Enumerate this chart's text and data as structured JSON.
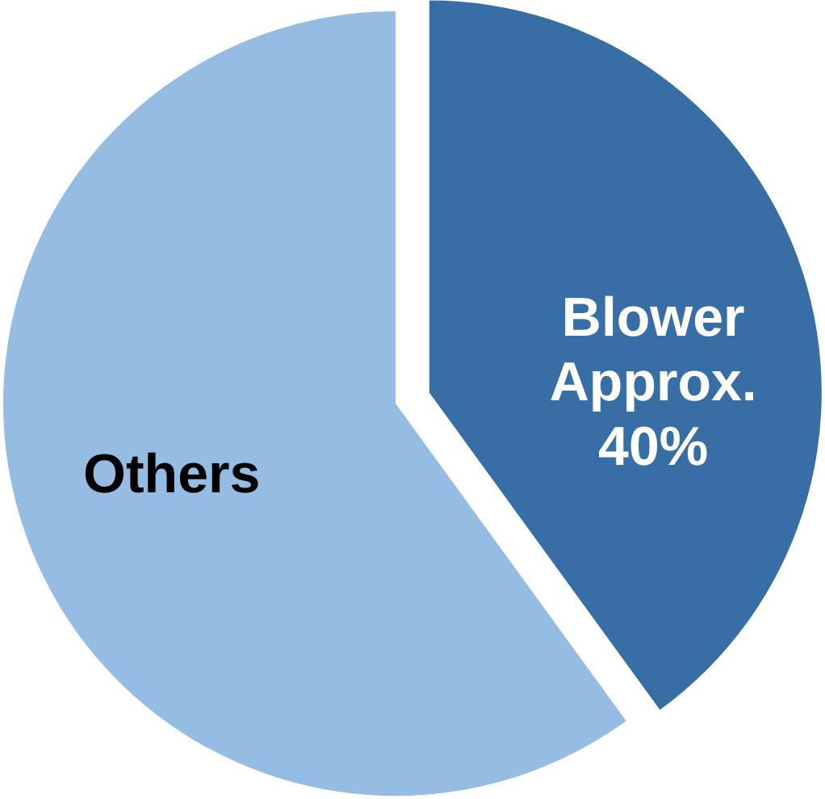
{
  "chart_data": {
    "type": "pie",
    "categories": [
      "Blower",
      "Others"
    ],
    "values": [
      40,
      60
    ],
    "value_labels": [
      "Approx. 40%",
      null
    ],
    "colors": [
      "#376ea5",
      "#95bce3"
    ]
  }
}
